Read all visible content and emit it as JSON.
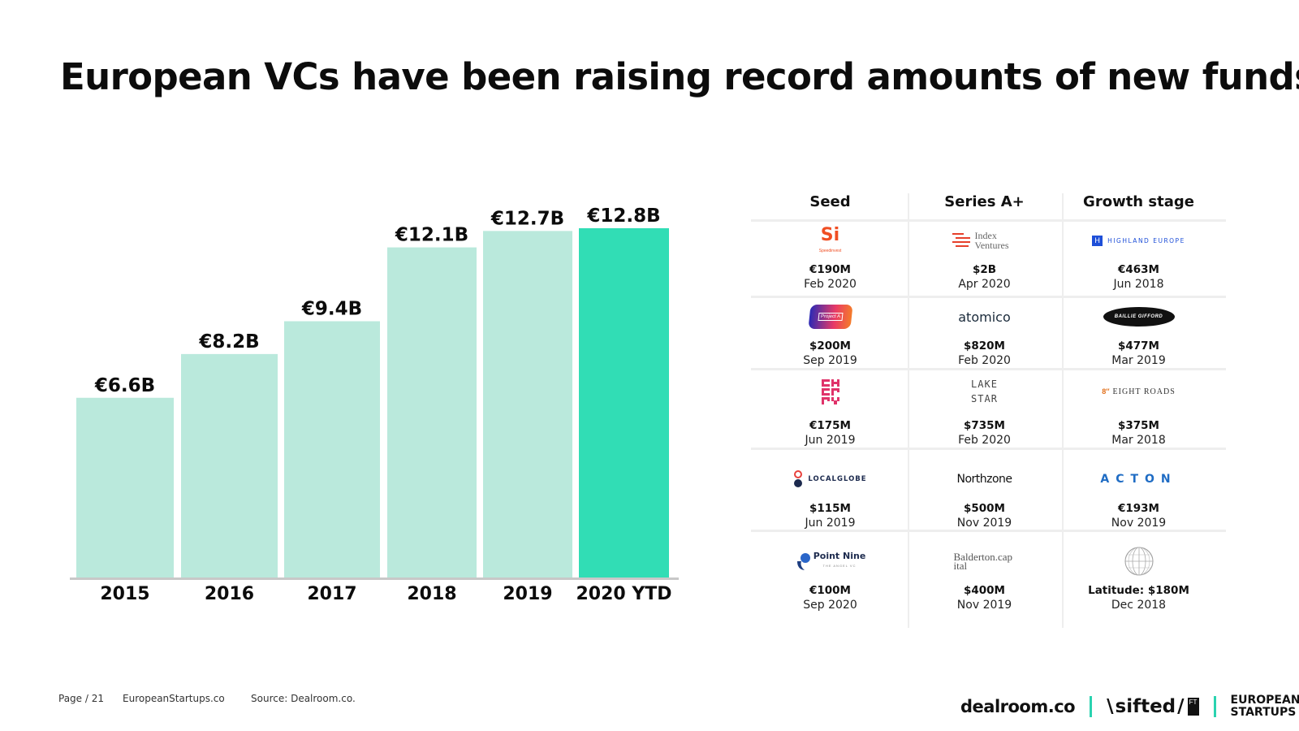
{
  "title": "European VCs have been raising record amounts of new funds.",
  "chart_data": {
    "type": "bar",
    "categories": [
      "2015",
      "2016",
      "2017",
      "2018",
      "2019",
      "2020 YTD"
    ],
    "values": [
      6.6,
      8.2,
      9.4,
      12.1,
      12.7,
      12.8
    ],
    "value_labels": [
      "€6.6B",
      "€8.2B",
      "€9.4B",
      "€12.1B",
      "€12.7B",
      "€12.8B"
    ],
    "unit": "€B",
    "highlight_index": 5,
    "colors": {
      "bar": "#bae9dc",
      "highlight": "#31ddb5",
      "baseline": "#c8c8c8"
    },
    "title": "",
    "xlabel": "",
    "ylabel": "",
    "grid": false,
    "legend": "none"
  },
  "funds_table": {
    "columns": [
      "Seed",
      "Series A+",
      "Growth stage"
    ],
    "rows": [
      [
        {
          "logo": "Si",
          "logo_sub": "Speedinvest",
          "amount": "€190M",
          "date": "Feb 2020"
        },
        {
          "logo": "Index Ventures",
          "amount": "$2B",
          "date": "Apr 2020"
        },
        {
          "logo": "HIGHLAND EUROPE",
          "amount": "€463M",
          "date": "Jun 2018"
        }
      ],
      [
        {
          "logo": "Project A",
          "amount": "$200M",
          "date": "Sep 2019"
        },
        {
          "logo": "atomico",
          "amount": "$820M",
          "date": "Feb 2020"
        },
        {
          "logo": "BAILLIE GIFFORD",
          "amount": "$477M",
          "date": "Mar 2019"
        }
      ],
      [
        {
          "logo": "CHERRY",
          "amount": "€175M",
          "date": "Jun 2019"
        },
        {
          "logo": "LAKE STAR",
          "amount": "$735M",
          "date": "Feb 2020"
        },
        {
          "logo": "EIGHT ROADS",
          "amount": "$375M",
          "date": "Mar 2018"
        }
      ],
      [
        {
          "logo": "LOCALGLOBE",
          "amount": "$115M",
          "date": "Jun 2019"
        },
        {
          "logo": "Northzone",
          "amount": "$500M",
          "date": "Nov 2019"
        },
        {
          "logo": "ACTON",
          "amount": "€193M",
          "date": "Nov 2019"
        }
      ],
      [
        {
          "logo": "Point Nine",
          "logo_sub": "THE ANGEL VC",
          "amount": "€100M",
          "date": "Sep 2020"
        },
        {
          "logo": "Balderton.capital",
          "amount": "$400M",
          "date": "Nov 2019"
        },
        {
          "logo": "globe-icon",
          "amount": "Latitude: $180M",
          "date": "Dec 2018"
        }
      ]
    ]
  },
  "footer": {
    "page": "Page / 21",
    "site": "EuropeanStartups.co",
    "source": "Source: Dealroom.co.",
    "logos": [
      "dealroom.co",
      "sifted",
      "EUROPEAN STARTUPS"
    ]
  }
}
